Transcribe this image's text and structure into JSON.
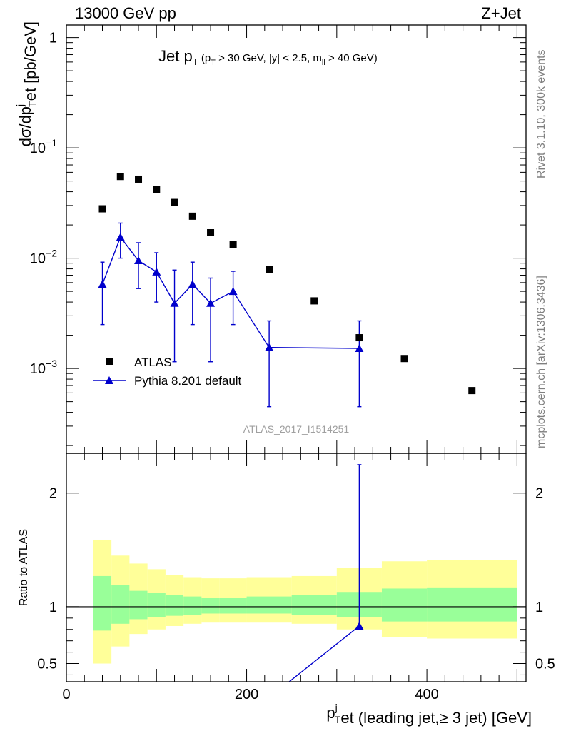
{
  "header": {
    "left": "13000 GeV pp",
    "right": "Z+Jet"
  },
  "side_texts": {
    "rivet": "Rivet 3.1.10,  300k events",
    "mcplots": "mcplots.cern.ch [arXiv:1306.3436]"
  },
  "watermark": "ATLAS_2017_I1514251",
  "colors": {
    "data": "#000000",
    "mc": "#0000cc",
    "band_inner": "#99ff99",
    "band_outer": "#ffff99"
  },
  "chart_data": [
    {
      "type": "scatter",
      "panel": "main",
      "title": {
        "prefix": "Jet p",
        "prefix_sub": "T",
        "cuts": [
          {
            "t": " (p",
            "sub": "T"
          },
          {
            "t": " > 30 GeV, |y| < 2.5, m",
            "sub": "ll"
          },
          {
            "t": " > 40 GeV)",
            "sub": ""
          }
        ]
      },
      "ylabel": {
        "parts": [
          {
            "t": "dσ/dp",
            "sup": "",
            "sub": ""
          },
          {
            "t": "",
            "sup": "j",
            "sub": "T"
          },
          {
            "t": "et [pb/GeV]",
            "sup": "",
            "sub": ""
          }
        ]
      },
      "yscale": "log",
      "xlim": [
        0,
        510
      ],
      "ylim": [
        0.00017,
        1.3
      ],
      "ytick_labels": [
        {
          "value": 1,
          "base": "1",
          "exp": ""
        },
        {
          "value": 0.1,
          "base": "10",
          "exp": "−1"
        },
        {
          "value": 0.01,
          "base": "10",
          "exp": "−2"
        },
        {
          "value": 0.001,
          "base": "10",
          "exp": "−3"
        }
      ],
      "legend": {
        "position": "lower-left",
        "entries": [
          {
            "label": "ATLAS",
            "marker": "square",
            "color": "#000000"
          },
          {
            "label": "Pythia 8.201 default",
            "marker": "triangle",
            "color": "#0000cc"
          }
        ]
      },
      "series": [
        {
          "name": "ATLAS",
          "marker": "square",
          "x": [
            40,
            60,
            80,
            100,
            120,
            140,
            160,
            185,
            225,
            275,
            325,
            375,
            450
          ],
          "y": [
            0.028,
            0.055,
            0.052,
            0.042,
            0.032,
            0.024,
            0.017,
            0.0133,
            0.0079,
            0.0041,
            0.0019,
            0.00123,
            0.00063
          ]
        },
        {
          "name": "Pythia 8.201 default",
          "marker": "triangle",
          "x": [
            40,
            60,
            80,
            100,
            120,
            140,
            160,
            185,
            225,
            325
          ],
          "y": [
            0.0058,
            0.0155,
            0.0095,
            0.0075,
            0.0039,
            0.0058,
            0.0039,
            0.005,
            0.00155,
            0.00152
          ],
          "yerr_low": [
            0.0025,
            0.01,
            0.0053,
            0.004,
            0.00115,
            0.0025,
            0.00115,
            0.0025,
            0.00045,
            0.00045
          ],
          "yerr_high": [
            0.0092,
            0.0208,
            0.0138,
            0.0112,
            0.0078,
            0.0092,
            0.0066,
            0.0076,
            0.0027,
            0.0027
          ]
        }
      ]
    },
    {
      "type": "line",
      "panel": "ratio",
      "ylabel": "Ratio to ATLAS",
      "xlabel": {
        "parts": [
          {
            "t": "p",
            "sup": "j",
            "sub": "T"
          },
          {
            "t": "et (leading jet,≥ 3 jet) [GeV]",
            "sup": "",
            "sub": ""
          }
        ]
      },
      "xlim": [
        0,
        510
      ],
      "ylim": [
        0.34,
        2.35
      ],
      "xtick_labels": [
        {
          "value": 0,
          "label": "0"
        },
        {
          "value": 200,
          "label": "200"
        },
        {
          "value": 400,
          "label": "400"
        }
      ],
      "ytick_labels": [
        {
          "value": 0.5,
          "label": "0.5"
        },
        {
          "value": 1,
          "label": "1"
        },
        {
          "value": 2,
          "label": "2"
        }
      ],
      "bands": {
        "bin_edges": [
          30,
          50,
          70,
          90,
          110,
          130,
          150,
          170,
          200,
          250,
          300,
          350,
          400,
          500
        ],
        "outer_low": [
          0.5,
          0.65,
          0.76,
          0.8,
          0.83,
          0.85,
          0.86,
          0.86,
          0.86,
          0.85,
          0.8,
          0.73,
          0.72
        ],
        "outer_high": [
          1.59,
          1.45,
          1.38,
          1.33,
          1.28,
          1.26,
          1.25,
          1.25,
          1.26,
          1.27,
          1.34,
          1.4,
          1.41
        ],
        "inner_low": [
          0.79,
          0.85,
          0.89,
          0.91,
          0.92,
          0.93,
          0.94,
          0.94,
          0.94,
          0.93,
          0.91,
          0.87,
          0.87
        ],
        "inner_high": [
          1.27,
          1.19,
          1.14,
          1.12,
          1.1,
          1.09,
          1.08,
          1.08,
          1.09,
          1.1,
          1.13,
          1.16,
          1.17
        ]
      },
      "reference": 1,
      "series": [
        {
          "name": "Pythia 8.201 default",
          "x": [
            225,
            325
          ],
          "y": [
            0.2,
            0.83
          ],
          "yerr_low": [
            0.0,
            0.0
          ],
          "yerr_high": [
            0.0,
            1.42
          ]
        }
      ]
    }
  ]
}
